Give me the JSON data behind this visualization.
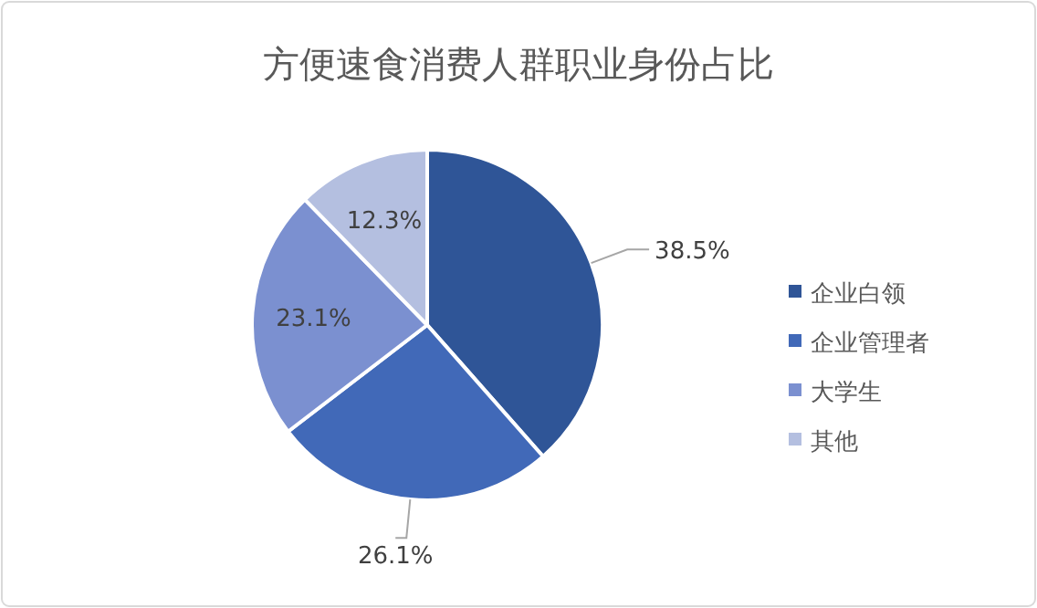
{
  "chart_data": {
    "type": "pie",
    "title": "方便速食消费人群职业身份占比",
    "categories": [
      "企业白领",
      "企业管理者",
      "大学生",
      "其他"
    ],
    "values": [
      38.5,
      26.1,
      23.1,
      12.3
    ],
    "colors": [
      "#2f5597",
      "#4169b8",
      "#7b90d0",
      "#b4bfe0"
    ],
    "value_labels": [
      "38.5%",
      "26.1%",
      "23.1%",
      "12.3%"
    ],
    "legend": "right"
  }
}
